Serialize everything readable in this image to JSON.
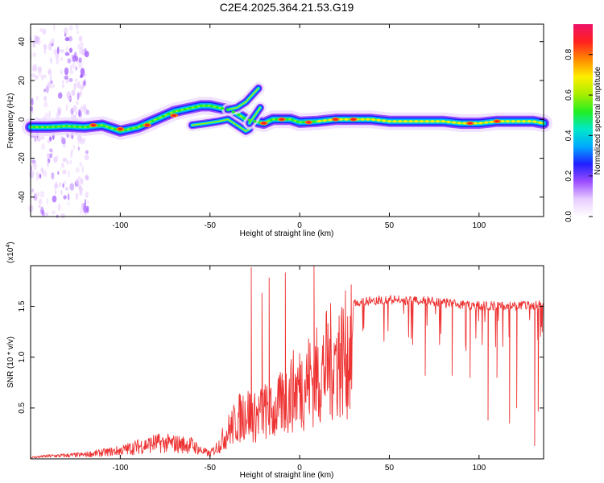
{
  "title": "C2E4.2025.364.21.53.G19",
  "chart_data": [
    {
      "id": "spectrogram",
      "type": "heatmap",
      "xlabel": "Height of straight line (km)",
      "ylabel": "Frequency (Hz)",
      "xlim": [
        -150,
        136
      ],
      "ylim": [
        -50,
        49
      ],
      "xticks": [
        -100,
        -50,
        0,
        50,
        100
      ],
      "yticks": [
        -40,
        -20,
        0,
        20,
        40
      ],
      "xtick_labels": [
        "-100",
        "-50",
        "0",
        "50",
        "100"
      ],
      "ytick_labels": [
        "-40",
        "-20",
        "0",
        "20",
        "40"
      ],
      "colorbar": {
        "label": "Normalized spectral amplitude",
        "range": [
          0,
          0.95
        ],
        "ticks": [
          0,
          0.2,
          0.4,
          0.6,
          0.8
        ],
        "tick_labels": [
          "0.0",
          "0.2",
          "0.4",
          "0.6",
          "0.8"
        ],
        "colors": [
          "#ffffff",
          "#e8ccff",
          "#9b4dff",
          "#2020ff",
          "#00aaff",
          "#00e8c8",
          "#22ee22",
          "#aaee00",
          "#ffee00",
          "#ff8800",
          "#ff2020",
          "#ee1166"
        ]
      },
      "ridges": [
        {
          "name": "main",
          "points": [
            [
              -150,
              -4
            ],
            [
              -140,
              -4
            ],
            [
              -130,
              -3.5
            ],
            [
              -120,
              -4
            ],
            [
              -110,
              -3
            ],
            [
              -100,
              -6
            ],
            [
              -95,
              -5
            ],
            [
              -90,
              -4
            ],
            [
              -85,
              -2
            ],
            [
              -80,
              0
            ],
            [
              -75,
              2
            ],
            [
              -70,
              4
            ],
            [
              -65,
              5
            ],
            [
              -60,
              6
            ],
            [
              -55,
              7
            ],
            [
              -50,
              7
            ],
            [
              -45,
              6
            ],
            [
              -40,
              5
            ],
            [
              -35,
              3
            ],
            [
              -30,
              0
            ],
            [
              -25,
              -1
            ],
            [
              -20,
              -2
            ],
            [
              -15,
              0
            ],
            [
              -10,
              0
            ],
            [
              -5,
              0
            ],
            [
              0,
              -1.5
            ],
            [
              10,
              -1
            ],
            [
              20,
              0
            ],
            [
              30,
              0
            ],
            [
              40,
              0
            ],
            [
              50,
              -1
            ],
            [
              60,
              -1
            ],
            [
              70,
              -1
            ],
            [
              80,
              -1
            ],
            [
              90,
              -2
            ],
            [
              100,
              -2
            ],
            [
              110,
              -1
            ],
            [
              120,
              -1
            ],
            [
              130,
              -1
            ],
            [
              136,
              -2
            ]
          ]
        },
        {
          "name": "upper-branch",
          "points": [
            [
              -40,
              5
            ],
            [
              -35,
              6
            ],
            [
              -30,
              9
            ],
            [
              -27,
              12
            ],
            [
              -25,
              14
            ],
            [
              -23,
              16
            ]
          ]
        },
        {
          "name": "lower-branch",
          "points": [
            [
              -60,
              -3
            ],
            [
              -52,
              -2
            ],
            [
              -45,
              -1
            ],
            [
              -40,
              0
            ],
            [
              -35,
              -3
            ],
            [
              -30,
              -6
            ],
            [
              -28,
              -5
            ]
          ]
        },
        {
          "name": "upper-branch-2",
          "points": [
            [
              -28,
              -2
            ],
            [
              -25,
              2
            ],
            [
              -22,
              6
            ]
          ]
        }
      ],
      "hot_spots": [
        [
          -115,
          -3
        ],
        [
          -100,
          -5
        ],
        [
          -85,
          -3
        ],
        [
          -70,
          2
        ],
        [
          -20,
          -2
        ],
        [
          -10,
          0
        ],
        [
          5,
          -1.5
        ],
        [
          20,
          0
        ],
        [
          30,
          0
        ],
        [
          95,
          -2
        ],
        [
          110,
          -1
        ]
      ]
    },
    {
      "id": "snr",
      "type": "line",
      "xlabel": "Height of straight line (km)",
      "ylabel": "SNR (10 * v/v)",
      "exponent_label": "(x10",
      "exponent": "4",
      "exponent_close": ")",
      "xlim": [
        -150,
        136
      ],
      "ylim": [
        0,
        1.9
      ],
      "xticks": [
        -100,
        -50,
        0,
        50,
        100
      ],
      "yticks": [
        0.5,
        1.0,
        1.5
      ],
      "xtick_labels": [
        "-100",
        "-50",
        "0",
        "50",
        "100"
      ],
      "ytick_labels": [
        "0.5",
        "1.0",
        "1.5"
      ],
      "color": "#ee3333",
      "envelope": [
        [
          -150,
          0.02
        ],
        [
          -140,
          0.04
        ],
        [
          -130,
          0.05
        ],
        [
          -120,
          0.06
        ],
        [
          -110,
          0.09
        ],
        [
          -100,
          0.12
        ],
        [
          -90,
          0.18
        ],
        [
          -80,
          0.23
        ],
        [
          -70,
          0.22
        ],
        [
          -60,
          0.2
        ],
        [
          -55,
          0.12
        ],
        [
          -50,
          0.07
        ],
        [
          -45,
          0.2
        ],
        [
          -40,
          0.4
        ],
        [
          -35,
          0.55
        ],
        [
          -30,
          0.7
        ],
        [
          -25,
          0.6
        ],
        [
          -20,
          0.7
        ],
        [
          -15,
          0.65
        ],
        [
          -10,
          0.8
        ],
        [
          -5,
          0.95
        ],
        [
          0,
          1.05
        ],
        [
          5,
          1.15
        ],
        [
          10,
          1.2
        ],
        [
          15,
          1.35
        ],
        [
          20,
          1.45
        ],
        [
          25,
          1.5
        ],
        [
          30,
          1.58
        ],
        [
          40,
          1.6
        ],
        [
          50,
          1.61
        ],
        [
          60,
          1.6
        ],
        [
          70,
          1.6
        ],
        [
          80,
          1.58
        ],
        [
          90,
          1.56
        ],
        [
          100,
          1.55
        ],
        [
          110,
          1.55
        ],
        [
          120,
          1.55
        ],
        [
          130,
          1.55
        ],
        [
          136,
          1.56
        ]
      ],
      "spikes": [
        [
          -27,
          1.88
        ],
        [
          -21,
          1.63
        ],
        [
          -17,
          1.78
        ],
        [
          -8,
          1.83
        ],
        [
          8,
          1.9
        ]
      ],
      "dips": [
        [
          70,
          0.82
        ],
        [
          85,
          0.82
        ],
        [
          95,
          0.8
        ],
        [
          105,
          0.38
        ],
        [
          110,
          0.8
        ],
        [
          117,
          0.35
        ],
        [
          121,
          0.5
        ],
        [
          131,
          0.13
        ],
        [
          133,
          0.47
        ]
      ]
    }
  ]
}
